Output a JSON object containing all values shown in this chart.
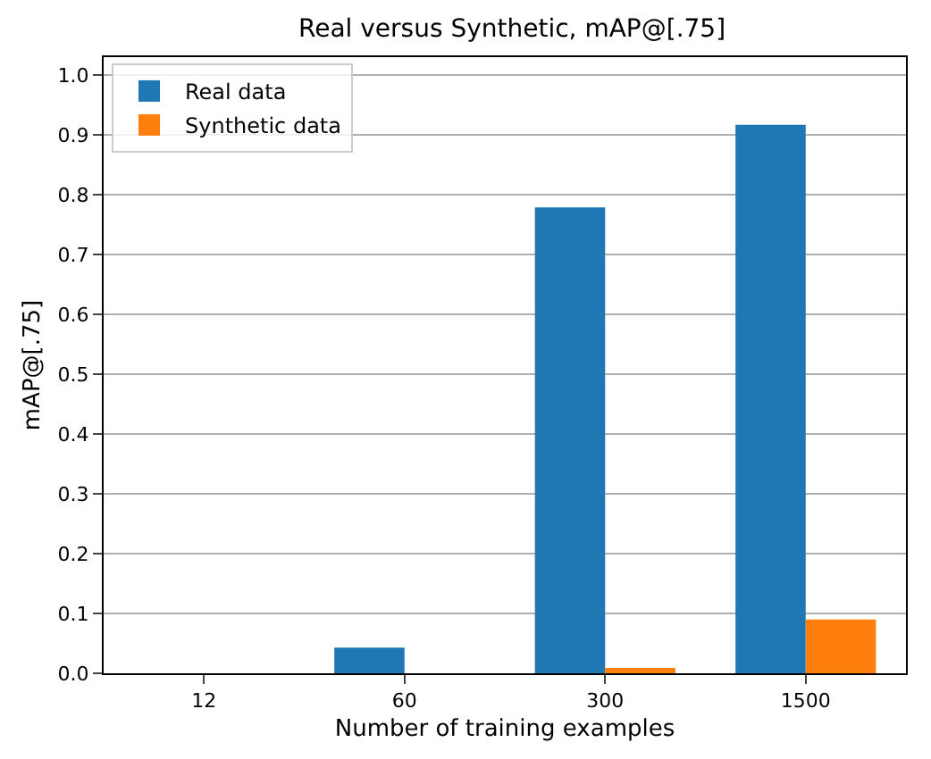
{
  "chart_data": {
    "type": "bar",
    "title": "Real versus Synthetic, mAP@[.75]",
    "xlabel": "Number of training examples",
    "ylabel": "mAP@[.75]",
    "categories": [
      "12",
      "60",
      "300",
      "1500"
    ],
    "series": [
      {
        "name": "Real data",
        "color": "#1f77b4",
        "values": [
          0,
          0.043,
          0.779,
          0.917
        ]
      },
      {
        "name": "Synthetic data",
        "color": "#ff7f0e",
        "values": [
          0,
          0,
          0.009,
          0.09
        ]
      }
    ],
    "ylim": [
      0,
      1.03
    ],
    "yticks": [
      {
        "value": 0,
        "label": "0.0"
      },
      {
        "value": 0.1,
        "label": "0.1"
      },
      {
        "value": 0.2,
        "label": "0.2"
      },
      {
        "value": 0.3,
        "label": "0.3"
      },
      {
        "value": 0.4,
        "label": "0.4"
      },
      {
        "value": 0.5,
        "label": "0.5"
      },
      {
        "value": 0.6,
        "label": "0.6"
      },
      {
        "value": 0.7,
        "label": "0.7"
      },
      {
        "value": 0.8,
        "label": "0.8"
      },
      {
        "value": 0.9,
        "label": "0.9"
      },
      {
        "value": 1,
        "label": "1.0"
      }
    ],
    "grid": "y",
    "legend": "top left"
  }
}
